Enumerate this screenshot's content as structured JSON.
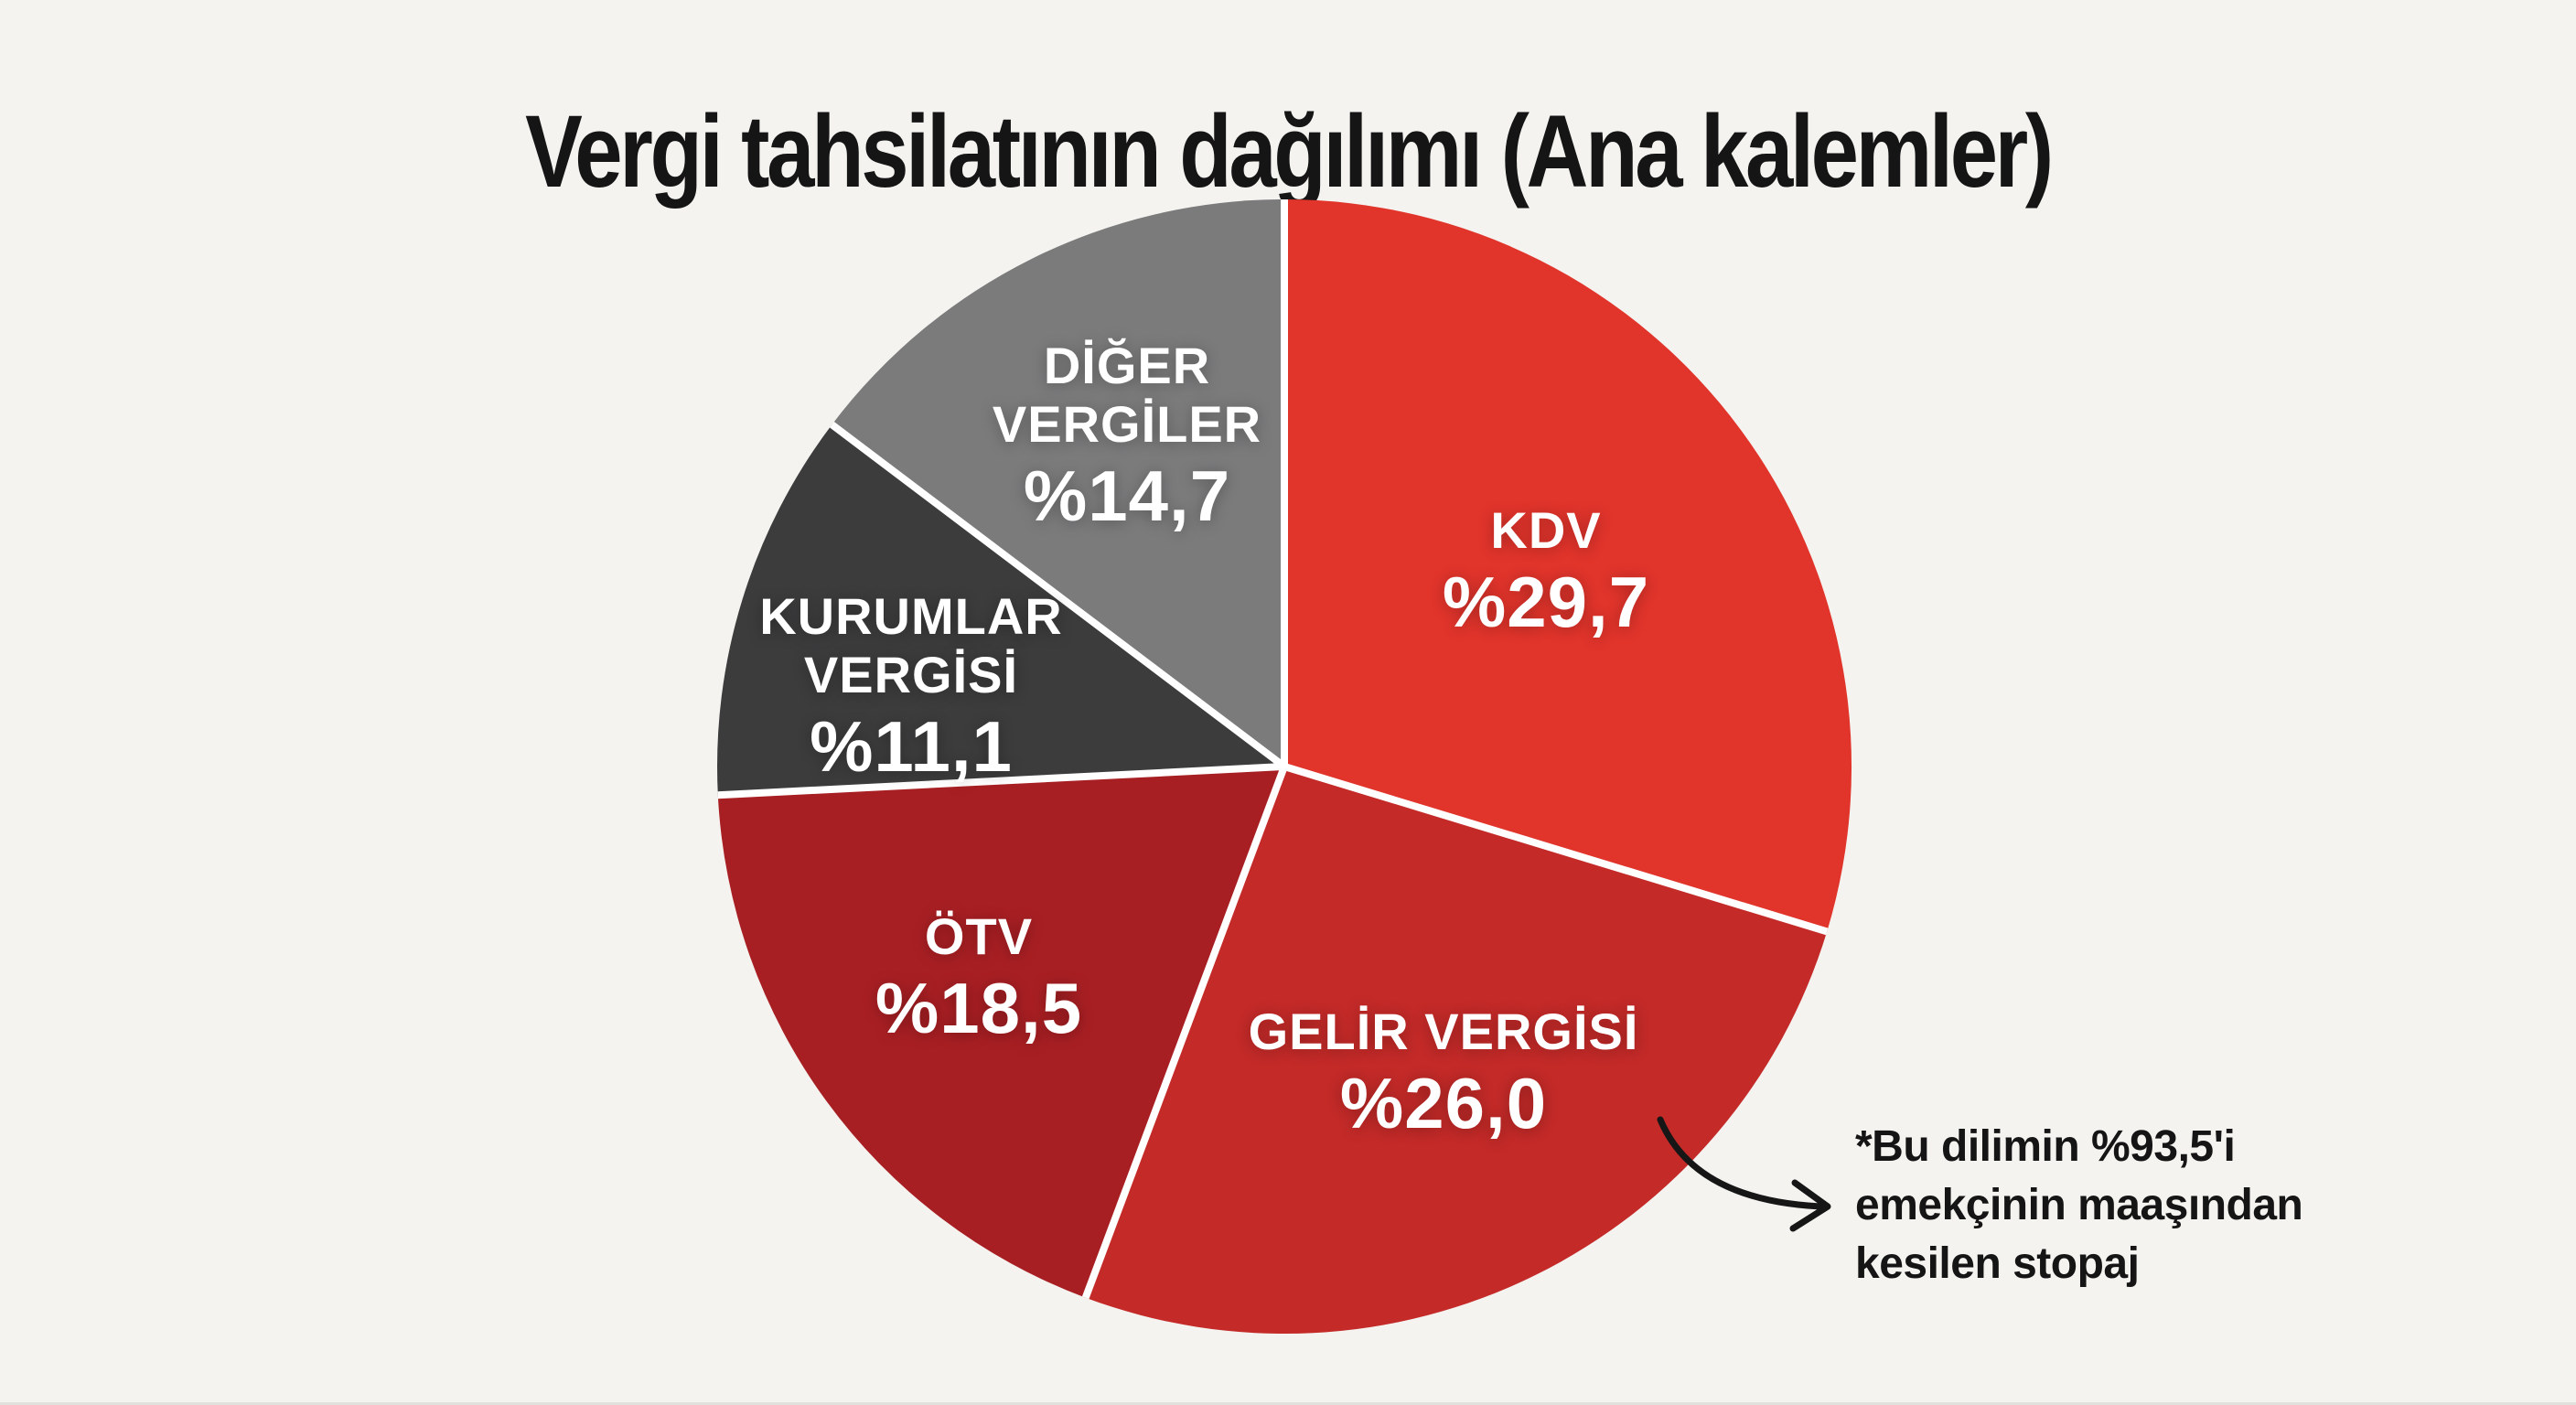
{
  "chart_data": {
    "type": "pie",
    "title": "Vergi tahsilatının dağılımı (Ana kalemler)",
    "direction": "clockwise",
    "start_angle_deg": 0,
    "total": 100.0,
    "legend_position": "labels-on-slices",
    "grid": false,
    "slices": [
      {
        "label": "KDV",
        "value": 29.7,
        "value_label": "%29,7",
        "color": "#e1342b"
      },
      {
        "label": "GELİR VERGİSİ",
        "value": 26.0,
        "value_label": "%26,0",
        "color": "#c32a28"
      },
      {
        "label": "ÖTV",
        "value": 18.5,
        "value_label": "%18,5",
        "color": "#a81f23"
      },
      {
        "label": "KURUMLAR VERGİSİ",
        "value": 11.1,
        "value_label": "%11,1",
        "color": "#3c3c3d"
      },
      {
        "label": "DİĞER VERGİLER",
        "value": 14.7,
        "value_label": "%14,7",
        "color": "#7b7b7c"
      }
    ],
    "annotation": {
      "lines": [
        "*Bu dilimin %93,5'i",
        "emekçinin maaşından",
        "kesilen stopaj"
      ],
      "points_to": "GELİR VERGİSİ"
    },
    "style": {
      "background": "#f5f3f0",
      "separator_color": "#ffffff",
      "slice_label_color": "#ffffff",
      "title_color": "#151515",
      "annotation_color": "#151515",
      "arrow_color": "#161616"
    }
  }
}
